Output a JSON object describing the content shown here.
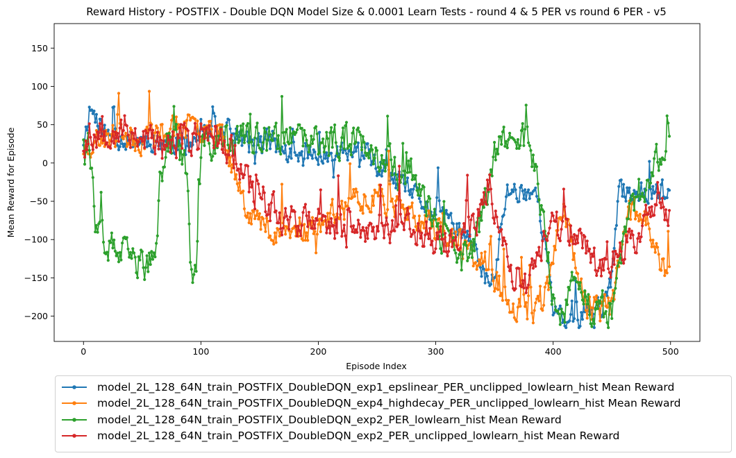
{
  "chart_data": {
    "type": "line",
    "title": "Reward History - POSTFIX - Double DQN Model Size & 0.0001 Learn Tests - round 4 & 5 PER vs round 6 PER - v5",
    "xlabel": "Episode Index",
    "ylabel": "Mean Reward for Episode",
    "xlim": [
      -25,
      525
    ],
    "ylim": [
      -233,
      182
    ],
    "x_ticks": [
      0,
      100,
      200,
      300,
      400,
      500
    ],
    "y_ticks": [
      -200,
      -150,
      -100,
      -50,
      0,
      50,
      100,
      150
    ],
    "x_tick_labels": [
      "0",
      "100",
      "200",
      "300",
      "400",
      "500"
    ],
    "y_tick_labels": [
      "−200",
      "−150",
      "−100",
      "−50",
      "0",
      "50",
      "100",
      "150"
    ],
    "grid": false,
    "legend_position": "below chart",
    "marker": "dot",
    "x_start": 0,
    "x_end": 499,
    "series": [
      {
        "name": "model_2L_128_64N_train_POSTFIX_DoubleDQN_exp1_epslinear_PER_unclipped_lowlearn_hist Mean Reward",
        "label": "model_2L_128_64N_train_POSTFIX_DoubleDQN_exp1_epslinear_PER_unclipped_lowlearn_hist Mean Reward",
        "color": "#1f77b4",
        "anchors": [
          [
            0,
            30
          ],
          [
            5,
            75
          ],
          [
            10,
            60
          ],
          [
            20,
            35
          ],
          [
            40,
            30
          ],
          [
            60,
            30
          ],
          [
            80,
            25
          ],
          [
            100,
            35
          ],
          [
            120,
            45
          ],
          [
            140,
            25
          ],
          [
            160,
            30
          ],
          [
            170,
            15
          ],
          [
            180,
            5
          ],
          [
            200,
            10
          ],
          [
            220,
            15
          ],
          [
            240,
            10
          ],
          [
            260,
            -20
          ],
          [
            280,
            -40
          ],
          [
            300,
            -70
          ],
          [
            320,
            -85
          ],
          [
            335,
            -120
          ],
          [
            345,
            -160
          ],
          [
            350,
            -150
          ],
          [
            355,
            -90
          ],
          [
            360,
            -35
          ],
          [
            370,
            -37
          ],
          [
            385,
            -37
          ],
          [
            390,
            -80
          ],
          [
            400,
            -195
          ],
          [
            410,
            -210
          ],
          [
            420,
            -205
          ],
          [
            430,
            -195
          ],
          [
            440,
            -190
          ],
          [
            450,
            -150
          ],
          [
            455,
            -37
          ],
          [
            470,
            -37
          ],
          [
            485,
            -37
          ],
          [
            499,
            -37
          ]
        ],
        "noise": 20,
        "seed": 11
      },
      {
        "name": "model_2L_128_64N_train_POSTFIX_DoubleDQN_exp4_highdecay_PER_unclipped_lowlearn_hist Mean Reward",
        "label": "model_2L_128_64N_train_POSTFIX_DoubleDQN_exp4_highdecay_PER_unclipped_lowlearn_hist Mean Reward",
        "color": "#ff7f0e",
        "anchors": [
          [
            0,
            20
          ],
          [
            10,
            30
          ],
          [
            30,
            35
          ],
          [
            50,
            30
          ],
          [
            70,
            40
          ],
          [
            90,
            45
          ],
          [
            110,
            50
          ],
          [
            120,
            30
          ],
          [
            130,
            -20
          ],
          [
            140,
            -60
          ],
          [
            150,
            -80
          ],
          [
            170,
            -90
          ],
          [
            190,
            -90
          ],
          [
            210,
            -70
          ],
          [
            230,
            -50
          ],
          [
            250,
            -40
          ],
          [
            270,
            -60
          ],
          [
            290,
            -80
          ],
          [
            310,
            -95
          ],
          [
            320,
            -110
          ],
          [
            330,
            -120
          ],
          [
            340,
            -130
          ],
          [
            350,
            -150
          ],
          [
            360,
            -180
          ],
          [
            370,
            -190
          ],
          [
            380,
            -195
          ],
          [
            390,
            -185
          ],
          [
            400,
            -130
          ],
          [
            405,
            -60
          ],
          [
            410,
            -60
          ],
          [
            420,
            -150
          ],
          [
            430,
            -190
          ],
          [
            440,
            -190
          ],
          [
            450,
            -185
          ],
          [
            460,
            -80
          ],
          [
            470,
            -60
          ],
          [
            480,
            -70
          ],
          [
            490,
            -130
          ],
          [
            499,
            -160
          ]
        ],
        "noise": 25,
        "seed": 23
      },
      {
        "name": "model_2L_128_64N_train_POSTFIX_DoubleDQN_exp2_PER_lowlearn_hist Mean Reward",
        "label": "model_2L_128_64N_train_POSTFIX_DoubleDQN_exp2_PER_lowlearn_hist Mean Reward",
        "color": "#2ca02c",
        "anchors": [
          [
            0,
            40
          ],
          [
            5,
            30
          ],
          [
            10,
            -100
          ],
          [
            20,
            -110
          ],
          [
            40,
            -125
          ],
          [
            55,
            -135
          ],
          [
            60,
            -130
          ],
          [
            65,
            -20
          ],
          [
            70,
            30
          ],
          [
            80,
            30
          ],
          [
            88,
            -20
          ],
          [
            92,
            -170
          ],
          [
            96,
            -130
          ],
          [
            100,
            20
          ],
          [
            110,
            25
          ],
          [
            120,
            30
          ],
          [
            140,
            30
          ],
          [
            160,
            25
          ],
          [
            180,
            30
          ],
          [
            200,
            25
          ],
          [
            220,
            30
          ],
          [
            240,
            25
          ],
          [
            260,
            0
          ],
          [
            270,
            -20
          ],
          [
            280,
            -10
          ],
          [
            290,
            -40
          ],
          [
            300,
            -90
          ],
          [
            310,
            -110
          ],
          [
            320,
            -125
          ],
          [
            330,
            -120
          ],
          [
            340,
            -60
          ],
          [
            350,
            20
          ],
          [
            360,
            30
          ],
          [
            370,
            40
          ],
          [
            380,
            20
          ],
          [
            390,
            -60
          ],
          [
            400,
            -190
          ],
          [
            410,
            -190
          ],
          [
            420,
            -150
          ],
          [
            430,
            -190
          ],
          [
            440,
            -192
          ],
          [
            450,
            -192
          ],
          [
            460,
            -100
          ],
          [
            470,
            -40
          ],
          [
            480,
            -30
          ],
          [
            490,
            10
          ],
          [
            499,
            40
          ]
        ],
        "noise": 30,
        "seed": 37
      },
      {
        "name": "model_2L_128_64N_train_POSTFIX_DoubleDQN_exp2_PER_unclipped_lowlearn_hist Mean Reward",
        "label": "model_2L_128_64N_train_POSTFIX_DoubleDQN_exp2_PER_unclipped_lowlearn_hist Mean Reward",
        "color": "#d62728",
        "anchors": [
          [
            0,
            25
          ],
          [
            10,
            40
          ],
          [
            30,
            45
          ],
          [
            50,
            35
          ],
          [
            70,
            20
          ],
          [
            90,
            30
          ],
          [
            110,
            40
          ],
          [
            130,
            10
          ],
          [
            140,
            -30
          ],
          [
            150,
            -45
          ],
          [
            160,
            -60
          ],
          [
            170,
            -70
          ],
          [
            190,
            -75
          ],
          [
            210,
            -85
          ],
          [
            230,
            -90
          ],
          [
            250,
            -85
          ],
          [
            270,
            -80
          ],
          [
            290,
            -90
          ],
          [
            300,
            -100
          ],
          [
            310,
            -110
          ],
          [
            320,
            -100
          ],
          [
            330,
            -80
          ],
          [
            340,
            -60
          ],
          [
            345,
            -20
          ],
          [
            350,
            -60
          ],
          [
            360,
            -130
          ],
          [
            370,
            -150
          ],
          [
            380,
            -160
          ],
          [
            390,
            -110
          ],
          [
            400,
            -80
          ],
          [
            410,
            -85
          ],
          [
            420,
            -100
          ],
          [
            430,
            -120
          ],
          [
            440,
            -130
          ],
          [
            450,
            -130
          ],
          [
            460,
            -110
          ],
          [
            470,
            -100
          ],
          [
            480,
            -70
          ],
          [
            490,
            -30
          ],
          [
            499,
            -80
          ]
        ],
        "noise": 30,
        "seed": 53
      }
    ]
  }
}
